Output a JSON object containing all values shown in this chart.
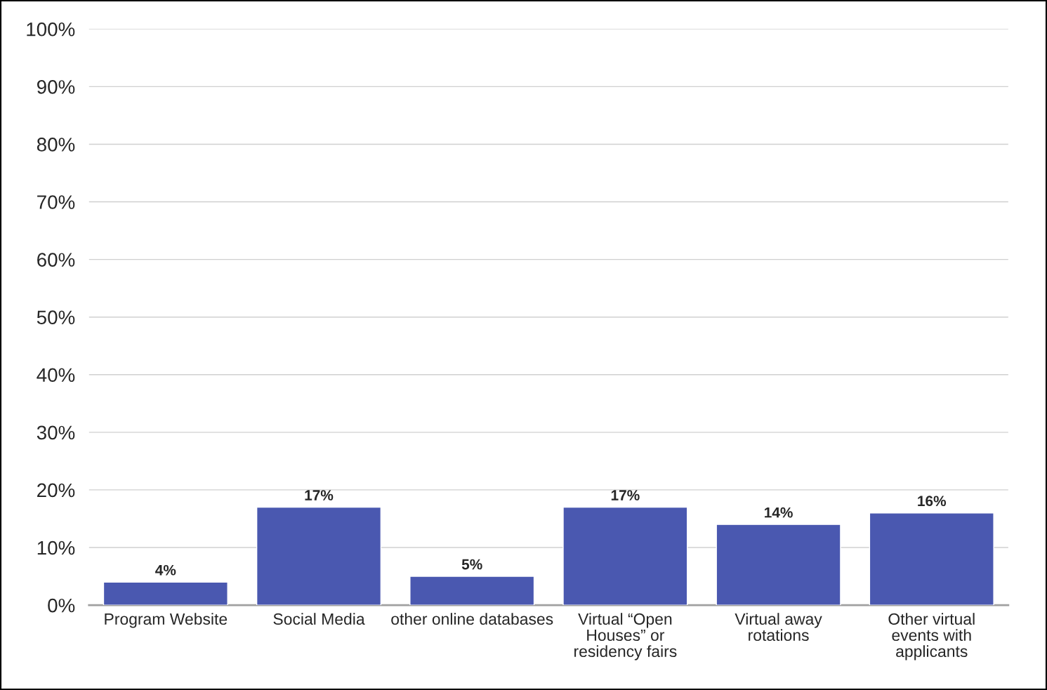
{
  "chart_data": {
    "type": "bar",
    "categories": [
      "Program Website",
      "Social Media",
      "other online databases",
      "Virtual “Open\nHouses” or\nresidency fairs",
      "Virtual away\nrotations",
      "Other virtual\nevents with\napplicants"
    ],
    "values": [
      4,
      17,
      5,
      17,
      14,
      16
    ],
    "color": "#4a58b0",
    "value_labels": [
      "4%",
      "17%",
      "5%",
      "17%",
      "14%",
      "16%"
    ],
    "ylim": [
      0,
      100
    ],
    "yticks": [
      {
        "value": 0,
        "label": "0%"
      },
      {
        "value": 10,
        "label": "10%"
      },
      {
        "value": 20,
        "label": "20%"
      },
      {
        "value": 30,
        "label": "30%"
      },
      {
        "value": 40,
        "label": "40%"
      },
      {
        "value": 50,
        "label": "50%"
      },
      {
        "value": 60,
        "label": "60%"
      },
      {
        "value": 70,
        "label": "70%"
      },
      {
        "value": 80,
        "label": "80%"
      },
      {
        "value": 90,
        "label": "90%"
      },
      {
        "value": 100,
        "label": "100%"
      }
    ],
    "grid": "y"
  }
}
